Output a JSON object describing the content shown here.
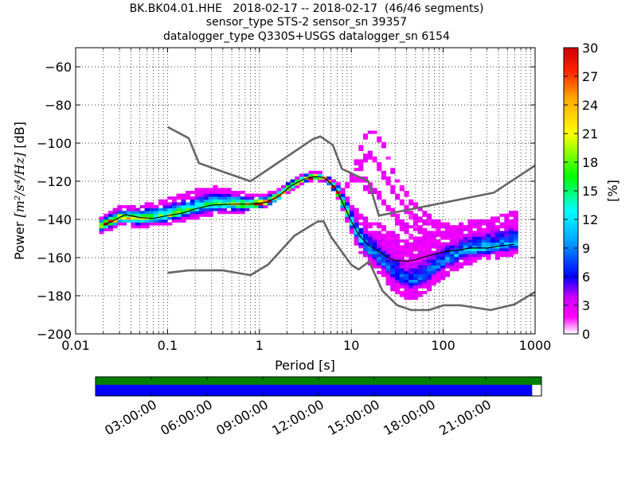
{
  "chart_data": {
    "type": "heatmap",
    "title_lines": [
      "BK.BK04.01.HHE   2018-02-17 -- 2018-02-17  (46/46 segments)",
      "sensor_type STS-2 sensor_sn 39357",
      "datalogger_type Q330S+USGS datalogger_sn 6154"
    ],
    "xlabel": "Period [s]",
    "ylabel_prefix": "Power ",
    "ylabel_units": "[m²/s⁴/Hz]",
    "ylabel_suffix": " [dB]",
    "x_scale": "log",
    "xlim": [
      0.01,
      1000
    ],
    "ylim": [
      -200,
      -50
    ],
    "x_ticks": [
      0.01,
      0.1,
      1,
      10,
      100,
      1000
    ],
    "x_tick_labels": [
      "0.01",
      "0.1",
      "1",
      "10",
      "100",
      "1000"
    ],
    "y_ticks": [
      -200,
      -180,
      -160,
      -140,
      -120,
      -100,
      -80,
      -60
    ],
    "y_tick_labels": [
      "−200",
      "−180",
      "−160",
      "−140",
      "−120",
      "−100",
      "−80",
      "−60"
    ],
    "grid": true,
    "colorbar": {
      "label": "[%]",
      "range": [
        0,
        30
      ],
      "ticks": [
        0,
        3,
        6,
        9,
        12,
        15,
        18,
        21,
        24,
        27,
        30
      ],
      "tick_labels": [
        "0",
        "3",
        "6",
        "9",
        "12",
        "15",
        "18",
        "21",
        "24",
        "27",
        "30"
      ],
      "colormap": "pqlx"
    },
    "nhnm": {
      "name": "NHNM",
      "color": "#666666",
      "points": [
        [
          0.1,
          -91.5
        ],
        [
          0.17,
          -97.4
        ],
        [
          0.22,
          -110.5
        ],
        [
          0.4,
          -115
        ],
        [
          0.8,
          -120
        ],
        [
          3.8,
          -98
        ],
        [
          4.6,
          -96.5
        ],
        [
          6.3,
          -101
        ],
        [
          7.9,
          -113.5
        ],
        [
          15.4,
          -120
        ],
        [
          20,
          -138
        ],
        [
          354.8,
          -126
        ],
        [
          10000,
          -80
        ]
      ]
    },
    "nlnm": {
      "name": "NLNM",
      "color": "#666666",
      "points": [
        [
          0.1,
          -168
        ],
        [
          0.17,
          -166.7
        ],
        [
          0.4,
          -166.7
        ],
        [
          0.8,
          -169.2
        ],
        [
          1.24,
          -163.7
        ],
        [
          2.4,
          -148.6
        ],
        [
          4.3,
          -141.1
        ],
        [
          5.0,
          -141.1
        ],
        [
          6.0,
          -149
        ],
        [
          10.0,
          -163.8
        ],
        [
          12.0,
          -166.2
        ],
        [
          15.6,
          -162.1
        ],
        [
          21.9,
          -177.5
        ],
        [
          31.6,
          -185
        ],
        [
          45,
          -187.5
        ],
        [
          70,
          -187.5
        ],
        [
          101,
          -185
        ],
        [
          154,
          -185
        ],
        [
          328,
          -187.5
        ],
        [
          600,
          -184.5
        ],
        [
          1000,
          -178
        ]
      ]
    },
    "median": {
      "name": "median",
      "color": "#000000",
      "points": [
        [
          0.02,
          -143
        ],
        [
          0.025,
          -141
        ],
        [
          0.03,
          -139
        ],
        [
          0.035,
          -137.5
        ],
        [
          0.05,
          -139
        ],
        [
          0.07,
          -139.5
        ],
        [
          0.1,
          -138
        ],
        [
          0.15,
          -136.5
        ],
        [
          0.2,
          -134.5
        ],
        [
          0.3,
          -132.5
        ],
        [
          0.5,
          -132
        ],
        [
          0.8,
          -132
        ],
        [
          1.2,
          -131
        ],
        [
          1.6,
          -128
        ],
        [
          2.2,
          -122.5
        ],
        [
          3,
          -119
        ],
        [
          4,
          -117.5
        ],
        [
          5,
          -118
        ],
        [
          6,
          -121
        ],
        [
          7,
          -125
        ],
        [
          8,
          -131
        ],
        [
          10,
          -141
        ],
        [
          12,
          -148
        ],
        [
          15,
          -153
        ],
        [
          20,
          -157
        ],
        [
          25,
          -160
        ],
        [
          30,
          -161.5
        ],
        [
          40,
          -162
        ],
        [
          50,
          -161
        ],
        [
          70,
          -159
        ],
        [
          100,
          -157
        ],
        [
          150,
          -156
        ],
        [
          200,
          -155
        ],
        [
          300,
          -155
        ],
        [
          400,
          -154
        ],
        [
          600,
          -153
        ]
      ]
    },
    "density_model": {
      "ridge": [
        [
          0.02,
          -143
        ],
        [
          0.03,
          -139
        ],
        [
          0.05,
          -139.5
        ],
        [
          0.1,
          -138
        ],
        [
          0.2,
          -134
        ],
        [
          0.3,
          -132
        ],
        [
          0.5,
          -132
        ],
        [
          0.8,
          -132.5
        ],
        [
          1.2,
          -131
        ],
        [
          1.6,
          -128
        ],
        [
          2.2,
          -122.5
        ],
        [
          3,
          -119
        ],
        [
          4,
          -117.5
        ],
        [
          5,
          -118
        ],
        [
          6,
          -121
        ],
        [
          7,
          -125
        ],
        [
          8,
          -131
        ],
        [
          10,
          -141
        ],
        [
          12,
          -149
        ],
        [
          15,
          -155
        ],
        [
          20,
          -160
        ],
        [
          25,
          -165
        ],
        [
          30,
          -168
        ],
        [
          40,
          -172
        ],
        [
          50,
          -172
        ],
        [
          70,
          -168
        ],
        [
          100,
          -162
        ],
        [
          150,
          -158
        ],
        [
          200,
          -156
        ],
        [
          300,
          -155
        ],
        [
          600,
          -153
        ]
      ],
      "band_above": [
        [
          0.02,
          5
        ],
        [
          0.1,
          9
        ],
        [
          0.3,
          10
        ],
        [
          1,
          5
        ],
        [
          3,
          3
        ],
        [
          6,
          3
        ],
        [
          8,
          7
        ],
        [
          10,
          11
        ],
        [
          15,
          15
        ],
        [
          25,
          20
        ],
        [
          40,
          22
        ],
        [
          80,
          20
        ],
        [
          150,
          16
        ],
        [
          300,
          15
        ],
        [
          600,
          18
        ]
      ],
      "band_below": [
        [
          0.02,
          4
        ],
        [
          0.1,
          5
        ],
        [
          0.3,
          6
        ],
        [
          1,
          3
        ],
        [
          3,
          2
        ],
        [
          6,
          2
        ],
        [
          8,
          4
        ],
        [
          10,
          6
        ],
        [
          15,
          8
        ],
        [
          25,
          10
        ],
        [
          40,
          10
        ],
        [
          80,
          9
        ],
        [
          150,
          8
        ],
        [
          300,
          6
        ],
        [
          600,
          6
        ]
      ],
      "peak_percent": 30,
      "extra_traces": [
        [
          [
            10,
            -118
          ],
          [
            13,
            -109
          ],
          [
            15,
            -106
          ],
          [
            20,
            -111
          ],
          [
            28,
            -123
          ],
          [
            40,
            -136
          ],
          [
            60,
            -146
          ],
          [
            100,
            -151
          ],
          [
            200,
            -152
          ]
        ],
        [
          [
            11,
            -112
          ],
          [
            14,
            -97
          ],
          [
            17,
            -93
          ],
          [
            22,
            -100
          ],
          [
            30,
            -118
          ],
          [
            45,
            -131
          ],
          [
            80,
            -141
          ],
          [
            150,
            -146
          ],
          [
            300,
            -148
          ]
        ],
        [
          [
            12,
            -115
          ],
          [
            16,
            -105
          ],
          [
            20,
            -113
          ],
          [
            30,
            -127
          ],
          [
            50,
            -139
          ],
          [
            100,
            -145
          ],
          [
            200,
            -148
          ],
          [
            400,
            -150
          ]
        ],
        [
          [
            8,
            -125
          ],
          [
            10,
            -119
          ],
          [
            14,
            -119
          ],
          [
            22,
            -130
          ],
          [
            35,
            -141
          ],
          [
            70,
            -149
          ],
          [
            150,
            -151
          ]
        ],
        [
          [
            14,
            -123
          ],
          [
            20,
            -127
          ],
          [
            35,
            -144
          ],
          [
            60,
            -154
          ],
          [
            120,
            -157
          ],
          [
            300,
            -158
          ]
        ]
      ]
    },
    "coverage": {
      "hour_ticks": [
        3,
        6,
        9,
        12,
        15,
        18,
        21
      ],
      "hour_tick_labels": [
        "03:00:00",
        "06:00:00",
        "09:00:00",
        "12:00:00",
        "15:00:00",
        "18:00:00",
        "21:00:00"
      ],
      "range_hours": [
        0,
        24
      ],
      "top_bar": {
        "start": 0,
        "end": 24,
        "color": "#008000"
      },
      "bottom_bar": {
        "start": 0,
        "end": 23.5,
        "color": "#0000ff"
      }
    }
  }
}
